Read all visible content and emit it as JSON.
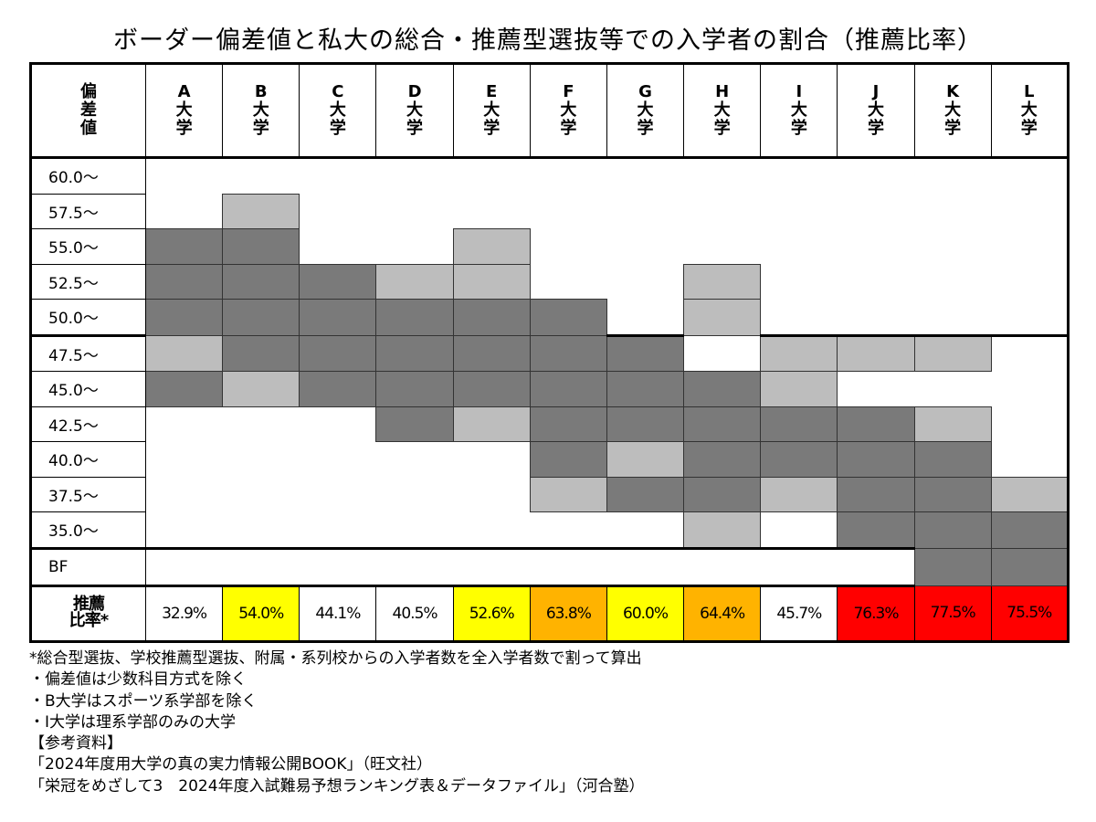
{
  "title": "ボーダー偏差値と私大の総合・推薦型選抜等での入学者の割合（推薦比率）",
  "table": {
    "corner": "偏差値",
    "columns": [
      "A大学",
      "B大学",
      "C大学",
      "D大学",
      "E大学",
      "F大学",
      "G大学",
      "H大学",
      "I大学",
      "J大学",
      "K大学",
      "L大学"
    ],
    "shade_colors": {
      "1": "#bdbdbd",
      "2": "#7a7a7a"
    },
    "rows": [
      {
        "label": "60.0～",
        "cells": [
          0,
          0,
          0,
          0,
          0,
          0,
          0,
          0,
          0,
          0,
          0,
          0
        ]
      },
      {
        "label": "57.5～",
        "cells": [
          0,
          1,
          0,
          0,
          0,
          0,
          0,
          0,
          0,
          0,
          0,
          0
        ]
      },
      {
        "label": "55.0～",
        "cells": [
          2,
          2,
          0,
          0,
          1,
          0,
          0,
          0,
          0,
          0,
          0,
          0
        ]
      },
      {
        "label": "52.5～",
        "cells": [
          2,
          2,
          2,
          1,
          1,
          0,
          0,
          1,
          0,
          0,
          0,
          0
        ]
      },
      {
        "label": "50.0～",
        "cells": [
          2,
          2,
          2,
          2,
          2,
          2,
          0,
          1,
          0,
          0,
          0,
          0
        ]
      },
      {
        "label": "47.5～",
        "cells": [
          1,
          2,
          2,
          2,
          2,
          2,
          2,
          0,
          1,
          1,
          1,
          0
        ]
      },
      {
        "label": "45.0～",
        "cells": [
          2,
          1,
          2,
          2,
          2,
          2,
          2,
          2,
          1,
          0,
          0,
          0
        ]
      },
      {
        "label": "42.5～",
        "cells": [
          0,
          0,
          0,
          2,
          1,
          2,
          2,
          2,
          2,
          2,
          1,
          0
        ]
      },
      {
        "label": "40.0～",
        "cells": [
          0,
          0,
          0,
          0,
          0,
          2,
          1,
          2,
          2,
          2,
          2,
          0
        ]
      },
      {
        "label": "37.5～",
        "cells": [
          0,
          0,
          0,
          0,
          0,
          1,
          2,
          2,
          1,
          2,
          2,
          1
        ]
      },
      {
        "label": "35.0～",
        "cells": [
          0,
          0,
          0,
          0,
          0,
          0,
          0,
          1,
          0,
          2,
          2,
          2
        ]
      },
      {
        "label": "BF",
        "cells": [
          0,
          0,
          0,
          0,
          0,
          0,
          0,
          0,
          0,
          0,
          2,
          2
        ]
      }
    ],
    "ratio_label": "推薦比率*",
    "ratios": [
      "32.9%",
      "54.0%",
      "44.1%",
      "40.5%",
      "52.6%",
      "63.8%",
      "60.0%",
      "64.4%",
      "45.7%",
      "76.3%",
      "77.5%",
      "75.5%"
    ],
    "ratio_colors": [
      "#ffffff",
      "#ffff00",
      "#ffffff",
      "#ffffff",
      "#ffff00",
      "#ffb300",
      "#ffff00",
      "#ffb300",
      "#ffffff",
      "#ff0000",
      "#ff0000",
      "#ff0000"
    ]
  },
  "notes": [
    "*総合型選抜、学校推薦型選抜、附属・系列校からの入学者数を全入学者数で割って算出",
    "・偏差値は少数科目方式を除く",
    "・B大学はスポーツ系学部を除く",
    "・I大学は理系学部のみの大学",
    "【参考資料】",
    "「2024年度用大学の真の実力情報公開BOOK」（旺文社）",
    "「栄冠をめざして3　2024年度入試難易予想ランキング表＆データファイル」（河合塾）"
  ]
}
